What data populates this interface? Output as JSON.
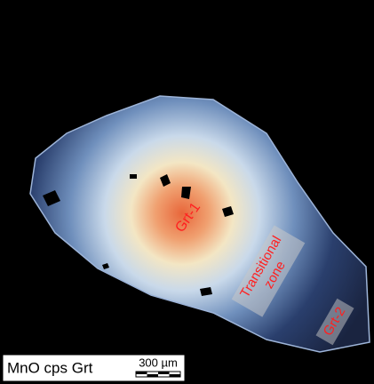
{
  "image": {
    "annotations": {
      "grt1": "Grt-1",
      "transitional": [
        "Transitional",
        "zone"
      ],
      "grt2": "Grt-2"
    },
    "legend": {
      "title": "MnO cps Grt",
      "scale": "300 µm"
    }
  }
}
